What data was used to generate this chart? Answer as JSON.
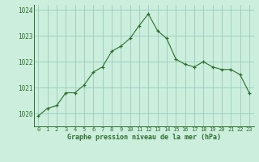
{
  "x": [
    0,
    1,
    2,
    3,
    4,
    5,
    6,
    7,
    8,
    9,
    10,
    11,
    12,
    13,
    14,
    15,
    16,
    17,
    18,
    19,
    20,
    21,
    22,
    23
  ],
  "y": [
    1019.9,
    1020.2,
    1020.3,
    1020.8,
    1020.8,
    1021.1,
    1021.6,
    1021.8,
    1022.4,
    1022.6,
    1022.9,
    1023.4,
    1023.85,
    1023.2,
    1022.9,
    1022.1,
    1021.9,
    1021.8,
    1022.0,
    1021.8,
    1021.7,
    1021.7,
    1021.5,
    1020.8
  ],
  "line_color": "#2d6e2d",
  "marker": "+",
  "marker_color": "#2d6e2d",
  "bg_color": "#cceedd",
  "grid_color": "#99ccbb",
  "text_color": "#2d6e2d",
  "xlabel": "Graphe pression niveau de la mer (hPa)",
  "ylim": [
    1019.5,
    1024.2
  ],
  "xlim": [
    -0.5,
    23.5
  ],
  "yticks": [
    1020,
    1021,
    1022,
    1023,
    1024
  ],
  "xtick_labels": [
    "0",
    "1",
    "2",
    "3",
    "4",
    "5",
    "6",
    "7",
    "8",
    "9",
    "10",
    "11",
    "12",
    "13",
    "14",
    "15",
    "16",
    "17",
    "18",
    "19",
    "20",
    "21",
    "22",
    "23"
  ]
}
